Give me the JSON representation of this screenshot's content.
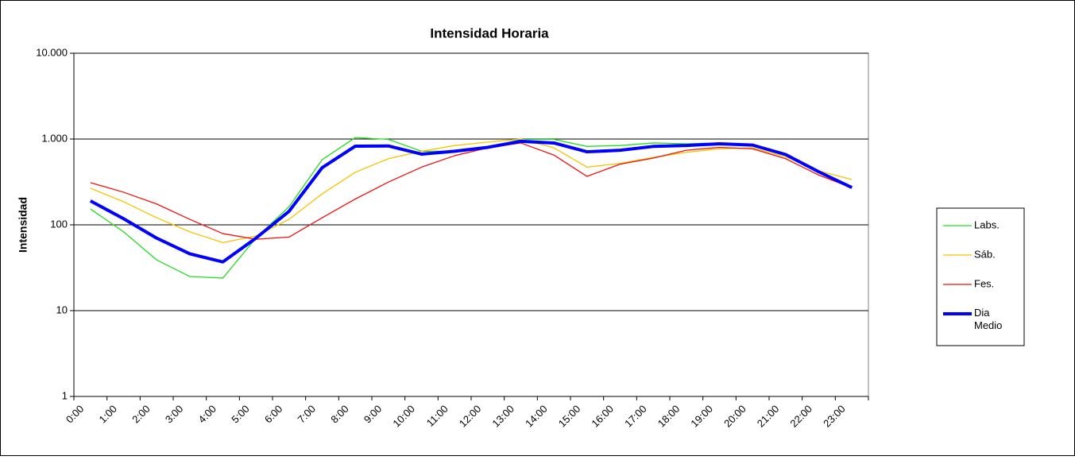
{
  "chart_data": {
    "type": "line",
    "title": "Intensidad Horaria",
    "y_label": "Intensidad",
    "log_y": true,
    "grid": true,
    "legend": "right",
    "categories": [
      "0:00",
      "1:00",
      "2:00",
      "3:00",
      "4:00",
      "5:00",
      "6:00",
      "7:00",
      "8:00",
      "9:00",
      "10:00",
      "11:00",
      "12:00",
      "13:00",
      "14:00",
      "15:00",
      "16:00",
      "17:00",
      "18:00",
      "19:00",
      "20:00",
      "21:00",
      "22:00",
      "23:00"
    ],
    "ylim": [
      1,
      10000
    ],
    "yticks": [
      1,
      10,
      100,
      {
        "value": 1000,
        "label": "1.000"
      },
      {
        "value": 10000,
        "label": "10.000"
      }
    ],
    "series": [
      {
        "name": "Labs.",
        "color": "#22dd22",
        "width": 1.3,
        "values": [
          153,
          83,
          39,
          25,
          24,
          70,
          163,
          575,
          1040,
          990,
          720,
          720,
          800,
          990,
          990,
          820,
          840,
          900,
          880,
          900,
          830,
          660,
          415,
          270
        ]
      },
      {
        "name": "Sáb.",
        "color": "#f5c400",
        "width": 1.3,
        "values": [
          267,
          186,
          121,
          83,
          62,
          74,
          116,
          230,
          410,
          590,
          720,
          840,
          920,
          1000,
          790,
          470,
          520,
          610,
          700,
          770,
          790,
          620,
          425,
          337
        ]
      },
      {
        "name": "Fes.",
        "color": "#ee1111",
        "width": 1.3,
        "values": [
          310,
          240,
          175,
          116,
          79,
          68,
          72,
          121,
          200,
          315,
          470,
          640,
          790,
          900,
          650,
          367,
          510,
          600,
          740,
          800,
          770,
          590,
          380,
          270
        ]
      },
      {
        "name": "Dia Medio",
        "color": "#0000ff",
        "width": 4,
        "values": [
          190,
          118,
          70,
          46,
          37,
          70,
          144,
          464,
          826,
          830,
          667,
          720,
          800,
          940,
          900,
          710,
          740,
          820,
          840,
          880,
          850,
          660,
          415,
          272
        ]
      }
    ]
  }
}
